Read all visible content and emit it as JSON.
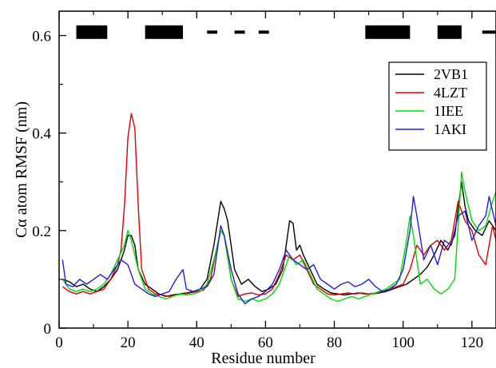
{
  "chart_data": {
    "type": "line",
    "xlabel": "Residue number",
    "ylabel": "Cα atom RMSF (nm)",
    "xlim": [
      0,
      127
    ],
    "ylim": [
      0,
      0.65
    ],
    "x_ticks": [
      "0",
      "20",
      "40",
      "60",
      "80",
      "100",
      "120"
    ],
    "y_ticks": [
      "0",
      "0.2",
      "0.4",
      "0.6"
    ],
    "x_tick_values": [
      0,
      20,
      40,
      60,
      80,
      100,
      120
    ],
    "y_tick_values": [
      0,
      0.2,
      0.4,
      0.6
    ],
    "grid": false,
    "legend_placement": "top-right",
    "secondary_structure_bars": [
      {
        "start": 5,
        "end": 14
      },
      {
        "start": 25,
        "end": 36
      },
      {
        "start": 43,
        "end": 46
      },
      {
        "start": 51,
        "end": 54
      },
      {
        "start": 58,
        "end": 61
      },
      {
        "start": 89,
        "end": 102
      },
      {
        "start": 110,
        "end": 117
      },
      {
        "start": 123,
        "end": 127
      }
    ],
    "secondary_structure_level": 0.607,
    "series": [
      {
        "name": "2VB1",
        "color": "#000000",
        "points": [
          [
            1,
            0.1
          ],
          [
            3,
            0.095
          ],
          [
            5,
            0.085
          ],
          [
            7,
            0.09
          ],
          [
            9,
            0.08
          ],
          [
            11,
            0.075
          ],
          [
            13,
            0.085
          ],
          [
            15,
            0.1
          ],
          [
            17,
            0.12
          ],
          [
            19,
            0.16
          ],
          [
            20,
            0.19
          ],
          [
            21,
            0.19
          ],
          [
            22,
            0.17
          ],
          [
            23,
            0.12
          ],
          [
            25,
            0.09
          ],
          [
            27,
            0.08
          ],
          [
            29,
            0.07
          ],
          [
            31,
            0.065
          ],
          [
            33,
            0.068
          ],
          [
            35,
            0.07
          ],
          [
            37,
            0.072
          ],
          [
            39,
            0.075
          ],
          [
            41,
            0.08
          ],
          [
            43,
            0.1
          ],
          [
            45,
            0.17
          ],
          [
            47,
            0.26
          ],
          [
            48,
            0.245
          ],
          [
            49,
            0.22
          ],
          [
            51,
            0.12
          ],
          [
            53,
            0.09
          ],
          [
            55,
            0.1
          ],
          [
            57,
            0.085
          ],
          [
            59,
            0.075
          ],
          [
            61,
            0.08
          ],
          [
            63,
            0.09
          ],
          [
            65,
            0.12
          ],
          [
            67,
            0.22
          ],
          [
            68,
            0.215
          ],
          [
            69,
            0.16
          ],
          [
            70,
            0.17
          ],
          [
            71,
            0.15
          ],
          [
            73,
            0.12
          ],
          [
            75,
            0.09
          ],
          [
            77,
            0.08
          ],
          [
            79,
            0.072
          ],
          [
            81,
            0.07
          ],
          [
            83,
            0.068
          ],
          [
            85,
            0.07
          ],
          [
            87,
            0.072
          ],
          [
            89,
            0.07
          ],
          [
            91,
            0.07
          ],
          [
            93,
            0.072
          ],
          [
            95,
            0.075
          ],
          [
            97,
            0.08
          ],
          [
            99,
            0.085
          ],
          [
            101,
            0.09
          ],
          [
            103,
            0.1
          ],
          [
            105,
            0.11
          ],
          [
            107,
            0.125
          ],
          [
            109,
            0.15
          ],
          [
            111,
            0.18
          ],
          [
            113,
            0.16
          ],
          [
            115,
            0.19
          ],
          [
            117,
            0.3
          ],
          [
            118,
            0.25
          ],
          [
            119,
            0.22
          ],
          [
            121,
            0.2
          ],
          [
            123,
            0.19
          ],
          [
            125,
            0.22
          ],
          [
            127,
            0.2
          ]
        ]
      },
      {
        "name": "4LZT",
        "color": "#e00000",
        "points": [
          [
            1,
            0.085
          ],
          [
            3,
            0.075
          ],
          [
            5,
            0.07
          ],
          [
            7,
            0.075
          ],
          [
            9,
            0.07
          ],
          [
            11,
            0.075
          ],
          [
            13,
            0.08
          ],
          [
            15,
            0.1
          ],
          [
            17,
            0.13
          ],
          [
            18,
            0.16
          ],
          [
            19,
            0.25
          ],
          [
            20,
            0.39
          ],
          [
            21,
            0.44
          ],
          [
            22,
            0.41
          ],
          [
            23,
            0.25
          ],
          [
            24,
            0.12
          ],
          [
            26,
            0.08
          ],
          [
            28,
            0.07
          ],
          [
            30,
            0.068
          ],
          [
            32,
            0.065
          ],
          [
            34,
            0.068
          ],
          [
            36,
            0.07
          ],
          [
            38,
            0.072
          ],
          [
            40,
            0.075
          ],
          [
            42,
            0.078
          ],
          [
            44,
            0.1
          ],
          [
            46,
            0.17
          ],
          [
            47,
            0.2
          ],
          [
            48,
            0.19
          ],
          [
            50,
            0.1
          ],
          [
            52,
            0.065
          ],
          [
            54,
            0.07
          ],
          [
            56,
            0.072
          ],
          [
            58,
            0.068
          ],
          [
            60,
            0.07
          ],
          [
            62,
            0.08
          ],
          [
            64,
            0.11
          ],
          [
            66,
            0.15
          ],
          [
            68,
            0.14
          ],
          [
            70,
            0.15
          ],
          [
            72,
            0.12
          ],
          [
            74,
            0.09
          ],
          [
            76,
            0.08
          ],
          [
            78,
            0.07
          ],
          [
            80,
            0.068
          ],
          [
            82,
            0.07
          ],
          [
            84,
            0.072
          ],
          [
            86,
            0.07
          ],
          [
            88,
            0.072
          ],
          [
            90,
            0.07
          ],
          [
            92,
            0.072
          ],
          [
            94,
            0.075
          ],
          [
            96,
            0.08
          ],
          [
            98,
            0.085
          ],
          [
            100,
            0.09
          ],
          [
            102,
            0.12
          ],
          [
            104,
            0.17
          ],
          [
            106,
            0.15
          ],
          [
            108,
            0.17
          ],
          [
            110,
            0.18
          ],
          [
            112,
            0.16
          ],
          [
            114,
            0.18
          ],
          [
            116,
            0.26
          ],
          [
            118,
            0.22
          ],
          [
            120,
            0.2
          ],
          [
            122,
            0.15
          ],
          [
            124,
            0.13
          ],
          [
            126,
            0.21
          ],
          [
            127,
            0.18
          ]
        ]
      },
      {
        "name": "1IEE",
        "color": "#00dd00",
        "points": [
          [
            1,
            0.1
          ],
          [
            3,
            0.08
          ],
          [
            5,
            0.075
          ],
          [
            7,
            0.08
          ],
          [
            9,
            0.075
          ],
          [
            11,
            0.08
          ],
          [
            13,
            0.09
          ],
          [
            15,
            0.11
          ],
          [
            17,
            0.14
          ],
          [
            19,
            0.17
          ],
          [
            20,
            0.2
          ],
          [
            21,
            0.18
          ],
          [
            23,
            0.12
          ],
          [
            25,
            0.08
          ],
          [
            27,
            0.07
          ],
          [
            29,
            0.065
          ],
          [
            31,
            0.06
          ],
          [
            33,
            0.065
          ],
          [
            35,
            0.07
          ],
          [
            37,
            0.068
          ],
          [
            39,
            0.07
          ],
          [
            41,
            0.075
          ],
          [
            43,
            0.09
          ],
          [
            45,
            0.14
          ],
          [
            47,
            0.2
          ],
          [
            48,
            0.19
          ],
          [
            50,
            0.1
          ],
          [
            52,
            0.06
          ],
          [
            54,
            0.055
          ],
          [
            56,
            0.06
          ],
          [
            58,
            0.055
          ],
          [
            60,
            0.06
          ],
          [
            62,
            0.07
          ],
          [
            64,
            0.09
          ],
          [
            66,
            0.13
          ],
          [
            67,
            0.15
          ],
          [
            69,
            0.13
          ],
          [
            71,
            0.14
          ],
          [
            73,
            0.11
          ],
          [
            75,
            0.08
          ],
          [
            77,
            0.07
          ],
          [
            79,
            0.06
          ],
          [
            81,
            0.055
          ],
          [
            83,
            0.06
          ],
          [
            85,
            0.065
          ],
          [
            87,
            0.06
          ],
          [
            89,
            0.065
          ],
          [
            91,
            0.07
          ],
          [
            93,
            0.075
          ],
          [
            95,
            0.08
          ],
          [
            97,
            0.09
          ],
          [
            99,
            0.1
          ],
          [
            101,
            0.18
          ],
          [
            102,
            0.23
          ],
          [
            103,
            0.19
          ],
          [
            105,
            0.09
          ],
          [
            107,
            0.1
          ],
          [
            109,
            0.08
          ],
          [
            111,
            0.07
          ],
          [
            113,
            0.08
          ],
          [
            115,
            0.1
          ],
          [
            117,
            0.32
          ],
          [
            118,
            0.28
          ],
          [
            120,
            0.22
          ],
          [
            122,
            0.2
          ],
          [
            124,
            0.21
          ],
          [
            126,
            0.26
          ],
          [
            127,
            0.28
          ]
        ]
      },
      {
        "name": "1AKI",
        "color": "#2020e0",
        "points": [
          [
            1,
            0.14
          ],
          [
            2,
            0.09
          ],
          [
            4,
            0.085
          ],
          [
            6,
            0.1
          ],
          [
            8,
            0.09
          ],
          [
            10,
            0.1
          ],
          [
            12,
            0.11
          ],
          [
            14,
            0.1
          ],
          [
            16,
            0.12
          ],
          [
            18,
            0.14
          ],
          [
            20,
            0.13
          ],
          [
            22,
            0.09
          ],
          [
            24,
            0.08
          ],
          [
            26,
            0.07
          ],
          [
            28,
            0.065
          ],
          [
            30,
            0.07
          ],
          [
            32,
            0.075
          ],
          [
            34,
            0.1
          ],
          [
            36,
            0.12
          ],
          [
            37,
            0.08
          ],
          [
            39,
            0.075
          ],
          [
            41,
            0.08
          ],
          [
            43,
            0.085
          ],
          [
            45,
            0.11
          ],
          [
            47,
            0.21
          ],
          [
            48,
            0.19
          ],
          [
            50,
            0.12
          ],
          [
            52,
            0.07
          ],
          [
            54,
            0.05
          ],
          [
            56,
            0.06
          ],
          [
            58,
            0.065
          ],
          [
            60,
            0.075
          ],
          [
            62,
            0.09
          ],
          [
            64,
            0.12
          ],
          [
            66,
            0.16
          ],
          [
            68,
            0.14
          ],
          [
            70,
            0.13
          ],
          [
            72,
            0.12
          ],
          [
            74,
            0.13
          ],
          [
            76,
            0.1
          ],
          [
            78,
            0.09
          ],
          [
            80,
            0.08
          ],
          [
            82,
            0.09
          ],
          [
            84,
            0.095
          ],
          [
            86,
            0.085
          ],
          [
            88,
            0.09
          ],
          [
            90,
            0.1
          ],
          [
            92,
            0.085
          ],
          [
            94,
            0.075
          ],
          [
            96,
            0.08
          ],
          [
            98,
            0.09
          ],
          [
            100,
            0.12
          ],
          [
            102,
            0.2
          ],
          [
            103,
            0.27
          ],
          [
            104,
            0.23
          ],
          [
            106,
            0.14
          ],
          [
            108,
            0.17
          ],
          [
            110,
            0.13
          ],
          [
            112,
            0.18
          ],
          [
            114,
            0.17
          ],
          [
            116,
            0.23
          ],
          [
            118,
            0.24
          ],
          [
            120,
            0.18
          ],
          [
            122,
            0.21
          ],
          [
            124,
            0.23
          ],
          [
            125,
            0.27
          ],
          [
            127,
            0.21
          ]
        ]
      }
    ]
  }
}
